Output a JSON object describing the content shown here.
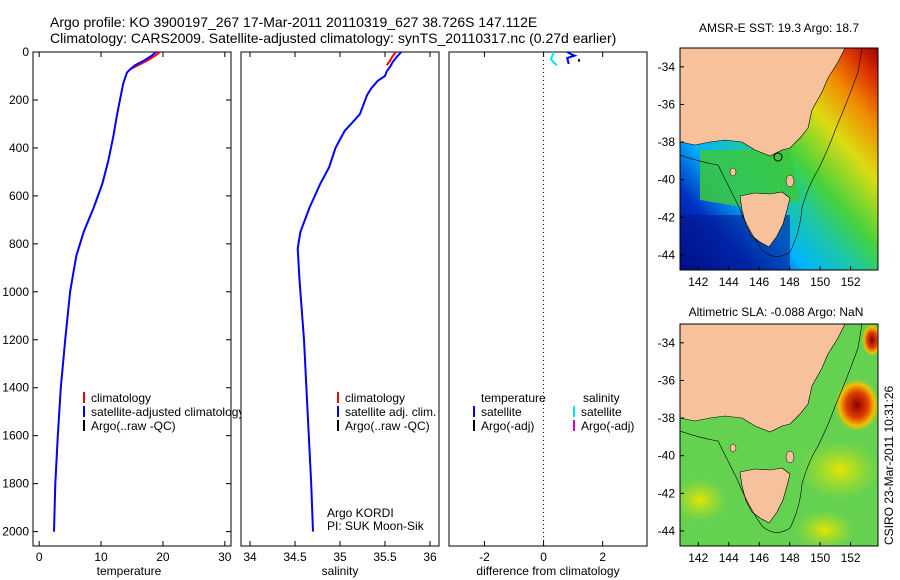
{
  "title": {
    "line1": "Argo profile: KO 3900197_267 17-Mar-2011 20110319_627 38.726S 147.112E",
    "line2": "Climatology: CARS2009. Satellite-adjusted climatology: synTS_20110317.nc (0.27d earlier)"
  },
  "side_label": "CSIRO 23-Mar-2011 10:31:26",
  "colors": {
    "climatology": "#ff0000",
    "satellite": "#0000ff",
    "argo": "#000000",
    "sal_satellite": "#00e5ee",
    "sal_argo": "#cc00cc",
    "land": "#f7c19b"
  },
  "chart_data": [
    {
      "id": "temperature",
      "type": "line",
      "xlabel": "temperature",
      "ylabel": "",
      "xlim": [
        -1,
        31
      ],
      "ylim": [
        0,
        2060
      ],
      "y_reversed": true,
      "xticks": [
        0,
        10,
        20,
        30
      ],
      "yticks": [
        0,
        200,
        400,
        600,
        800,
        1000,
        1200,
        1400,
        1600,
        1800,
        2000
      ],
      "legend": [
        "climatology",
        "satellite-adjusted climatology",
        "Argo(..raw -QC)"
      ],
      "series": [
        {
          "name": "climatology",
          "color": "#ff0000",
          "points": [
            [
              19.5,
              0
            ],
            [
              18.8,
              15
            ],
            [
              17.5,
              35
            ],
            [
              16.0,
              55
            ],
            [
              14.8,
              70
            ]
          ]
        },
        {
          "name": "satellite-adjusted climatology",
          "color": "#0000ff",
          "points": [
            [
              18.9,
              0
            ],
            [
              18.2,
              15
            ],
            [
              17.0,
              35
            ],
            [
              15.5,
              55
            ],
            [
              14.8,
              70
            ],
            [
              14.2,
              85
            ],
            [
              13.6,
              130
            ],
            [
              13.2,
              180
            ],
            [
              12.6,
              260
            ],
            [
              12.0,
              350
            ],
            [
              11.2,
              450
            ],
            [
              10.2,
              550
            ],
            [
              8.8,
              650
            ],
            [
              7.2,
              750
            ],
            [
              6.0,
              850
            ],
            [
              5.0,
              1000
            ],
            [
              4.2,
              1200
            ],
            [
              3.5,
              1400
            ],
            [
              3.0,
              1600
            ],
            [
              2.6,
              1800
            ],
            [
              2.4,
              2000
            ]
          ]
        }
      ]
    },
    {
      "id": "salinity",
      "type": "line",
      "xlabel": "salinity",
      "xlim": [
        33.9,
        36.1
      ],
      "ylim": [
        0,
        2060
      ],
      "y_reversed": true,
      "xticks": [
        34,
        34.5,
        35,
        35.5,
        36
      ],
      "legend": [
        "climatology",
        "satellite adj. clim.",
        "Argo(..raw -QC)"
      ],
      "annotation": [
        "Argo KORDI",
        "PI: SUK Moon-Sik"
      ],
      "series": [
        {
          "name": "climatology",
          "color": "#ff0000",
          "points": [
            [
              35.62,
              0
            ],
            [
              35.58,
              20
            ],
            [
              35.55,
              40
            ],
            [
              35.52,
              55
            ]
          ]
        },
        {
          "name": "satellite adj. clim.",
          "color": "#0000ff",
          "points": [
            [
              35.68,
              0
            ],
            [
              35.62,
              25
            ],
            [
              35.58,
              45
            ],
            [
              35.56,
              60
            ],
            [
              35.52,
              80
            ],
            [
              35.5,
              100
            ],
            [
              35.42,
              120
            ],
            [
              35.35,
              150
            ],
            [
              35.3,
              180
            ],
            [
              35.22,
              260
            ],
            [
              35.05,
              330
            ],
            [
              34.95,
              400
            ],
            [
              34.88,
              480
            ],
            [
              34.78,
              550
            ],
            [
              34.66,
              650
            ],
            [
              34.56,
              750
            ],
            [
              34.53,
              820
            ],
            [
              34.55,
              950
            ],
            [
              34.6,
              1200
            ],
            [
              34.64,
              1500
            ],
            [
              34.68,
              1800
            ],
            [
              34.7,
              2000
            ]
          ]
        }
      ]
    },
    {
      "id": "difference",
      "type": "line",
      "xlabel": "difference from climatology",
      "xlim": [
        -3.2,
        3.5
      ],
      "ylim": [
        0,
        2060
      ],
      "y_reversed": true,
      "xticks": [
        -2,
        0,
        2
      ],
      "legend_left": {
        "header": "temperature",
        "items": [
          "satellite",
          "Argo(-adj)"
        ]
      },
      "legend_right": {
        "header": "salinity",
        "items": [
          "satellite",
          "Argo(-adj)"
        ]
      },
      "series": [
        {
          "name": "temperature satellite",
          "color": "#0000ff",
          "points": [
            [
              0.8,
              0
            ],
            [
              0.95,
              10
            ],
            [
              1.05,
              15
            ],
            [
              0.8,
              25
            ],
            [
              0.85,
              50
            ]
          ]
        },
        {
          "name": "salinity satellite",
          "color": "#00e5ee",
          "points": [
            [
              0.35,
              0
            ],
            [
              0.3,
              15
            ],
            [
              0.25,
              30
            ],
            [
              0.35,
              45
            ],
            [
              0.45,
              55
            ]
          ]
        },
        {
          "name": "Argo(-adj)",
          "color": "#000000",
          "points": [
            [
              1.2,
              30
            ],
            [
              1.2,
              40
            ]
          ]
        }
      ]
    }
  ],
  "maps": [
    {
      "id": "sst",
      "title": "AMSR-E SST: 19.3 Argo: 18.7",
      "xticks": [
        142,
        144,
        146,
        148,
        150,
        152
      ],
      "yticks": [
        -34,
        -36,
        -38,
        -40,
        -42,
        -44
      ]
    },
    {
      "id": "sla",
      "title": "Altimetric SLA: -0.088 Argo: NaN",
      "xticks": [
        142,
        144,
        146,
        148,
        150,
        152
      ],
      "yticks": [
        -34,
        -36,
        -38,
        -40,
        -42,
        -44
      ]
    }
  ]
}
